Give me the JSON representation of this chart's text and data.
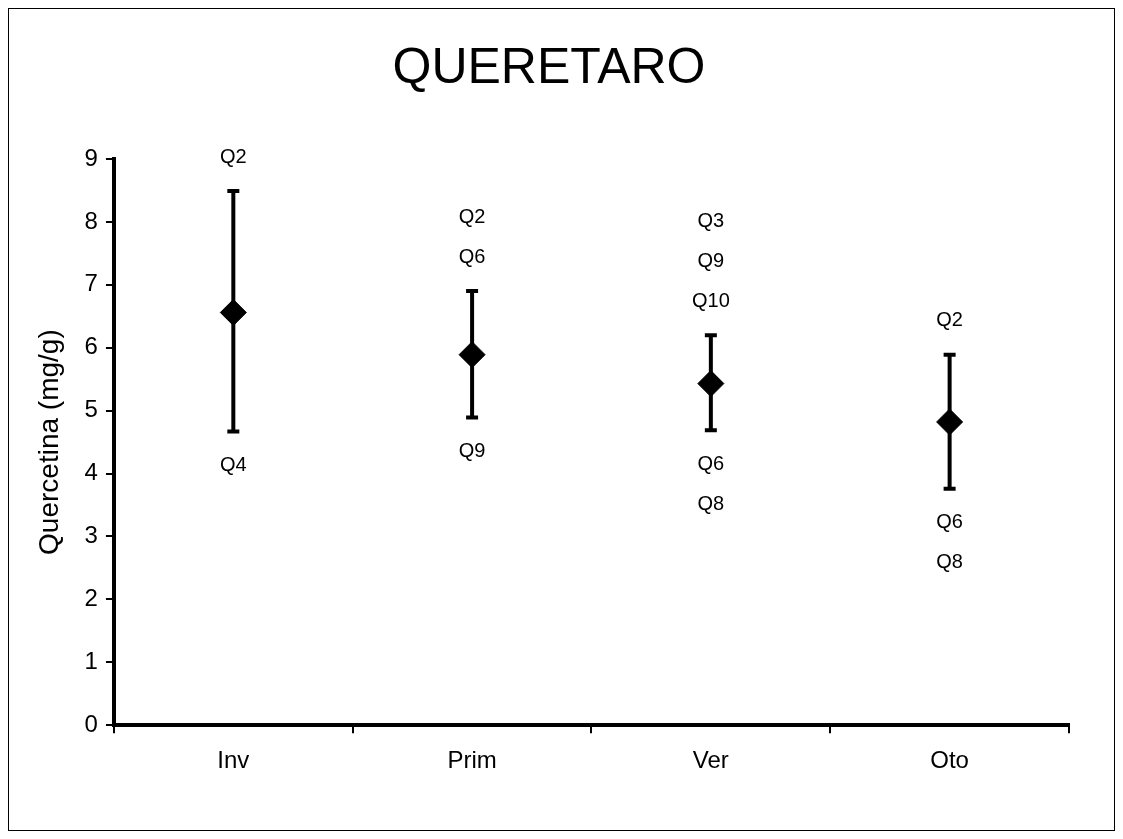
{
  "chart_data": {
    "type": "scatter",
    "title": "QUERETARO",
    "ylabel": "Quercetina (mg/g)",
    "categories": [
      "Inv",
      "Prim",
      "Ver",
      "Oto"
    ],
    "values": [
      6.56,
      5.89,
      5.43,
      4.82
    ],
    "errors": [
      [
        4.67,
        8.49
      ],
      [
        4.89,
        6.9
      ],
      [
        4.69,
        6.2
      ],
      [
        3.76,
        5.89
      ]
    ],
    "color": "#000000",
    "marker": "diamond",
    "ylim": [
      0,
      9
    ],
    "yticks": [
      0,
      1,
      2,
      3,
      4,
      5,
      6,
      7,
      8,
      9
    ],
    "grid": false,
    "legend": false,
    "annotations": [
      "Q2",
      "Q4",
      "Q2",
      "Q6",
      "Q9",
      "Q3",
      "Q9",
      "Q10",
      "Q6",
      "Q8",
      "Q2",
      "Q6",
      "Q8"
    ]
  }
}
